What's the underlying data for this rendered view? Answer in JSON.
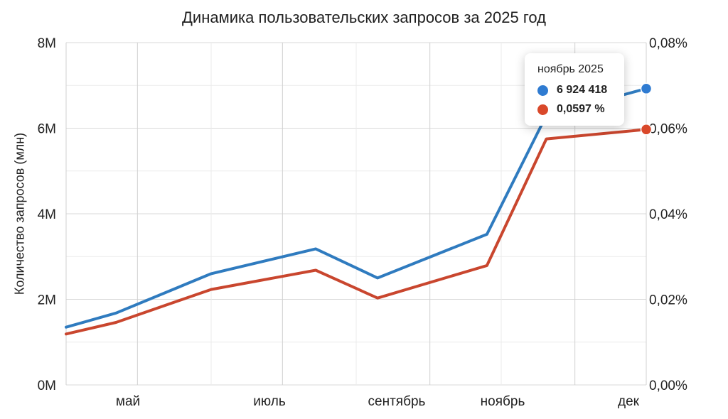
{
  "chart_data": {
    "type": "line",
    "title": "Динамика пользовательских запросов за 2025 год",
    "ylabel": "Количество запросов (млн)",
    "x_ticks": [
      "май",
      "июль",
      "сентябрь",
      "ноябрь",
      "дек"
    ],
    "y_ticks_left": [
      "8M",
      "6M",
      "4M",
      "2M",
      "0M"
    ],
    "y_ticks_right": [
      "0,08%",
      "0,06%",
      "0,04%",
      "0,02%",
      "0,00%"
    ],
    "ylim": [
      0,
      8000000
    ],
    "ylim_right": [
      0,
      0.08
    ],
    "grid": true,
    "x": [
      "2025-04-01",
      "2025-04-22",
      "2025-06-01",
      "2025-07-15",
      "2025-08-10",
      "2025-09-25",
      "2025-10-20",
      "2025-12-01"
    ],
    "series": [
      {
        "axis": "left",
        "color": "#2f7bbf",
        "values": [
          1350000,
          1680000,
          2600000,
          3180000,
          2500000,
          3520000,
          6300000,
          6924418
        ]
      },
      {
        "axis": "right",
        "color": "#c9462e",
        "values": [
          0.0119,
          0.0146,
          0.0223,
          0.0268,
          0.0203,
          0.0279,
          0.0575,
          0.0597
        ]
      }
    ],
    "tooltip": {
      "month": "ноябрь 2025",
      "value_blue": "6 924 418",
      "value_red": "0,0597 %",
      "dot_blue": "#2f7bd1",
      "dot_red": "#d9482a"
    }
  }
}
